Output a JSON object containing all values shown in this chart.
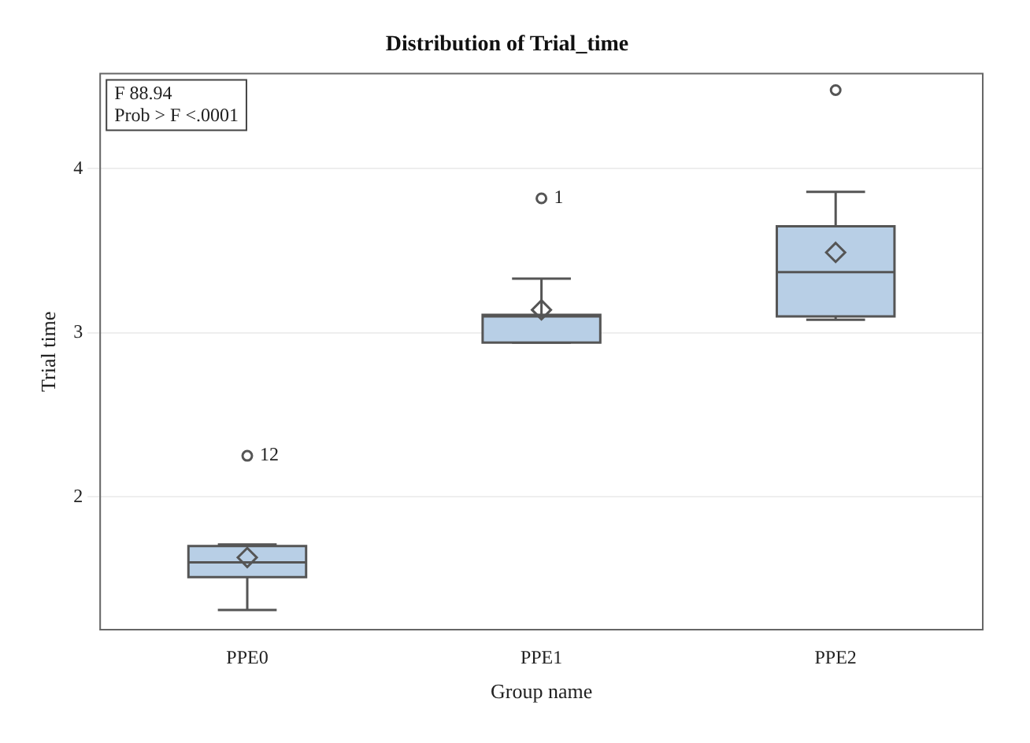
{
  "chart_data": {
    "type": "box",
    "title": "Distribution of Trial_time",
    "xlabel": "Group name",
    "ylabel": "Trial time",
    "categories": [
      "PPE0",
      "PPE1",
      "PPE2"
    ],
    "series": [
      {
        "color": "#b8cfe6",
        "boxes": [
          {
            "low": 1.31,
            "q1": 1.51,
            "median": 1.6,
            "q3": 1.7,
            "high": 1.71,
            "mean": 1.63,
            "outliers": [
              2.25
            ]
          },
          {
            "low": 2.94,
            "q1": 2.94,
            "median": 3.1,
            "q3": 3.11,
            "high": 3.33,
            "mean": 3.14,
            "outliers": [
              3.82
            ]
          },
          {
            "low": 3.08,
            "q1": 3.1,
            "median": 3.37,
            "q3": 3.65,
            "high": 3.86,
            "mean": 3.49,
            "outliers": [
              4.48
            ]
          }
        ]
      }
    ],
    "ylim": [
      1.19,
      4.58
    ],
    "yticks": [
      2,
      3,
      4
    ],
    "grid": "y",
    "marker": "diamond",
    "annotations": [
      "F 88.94\nProb > F <.0001",
      "12",
      "1"
    ]
  }
}
